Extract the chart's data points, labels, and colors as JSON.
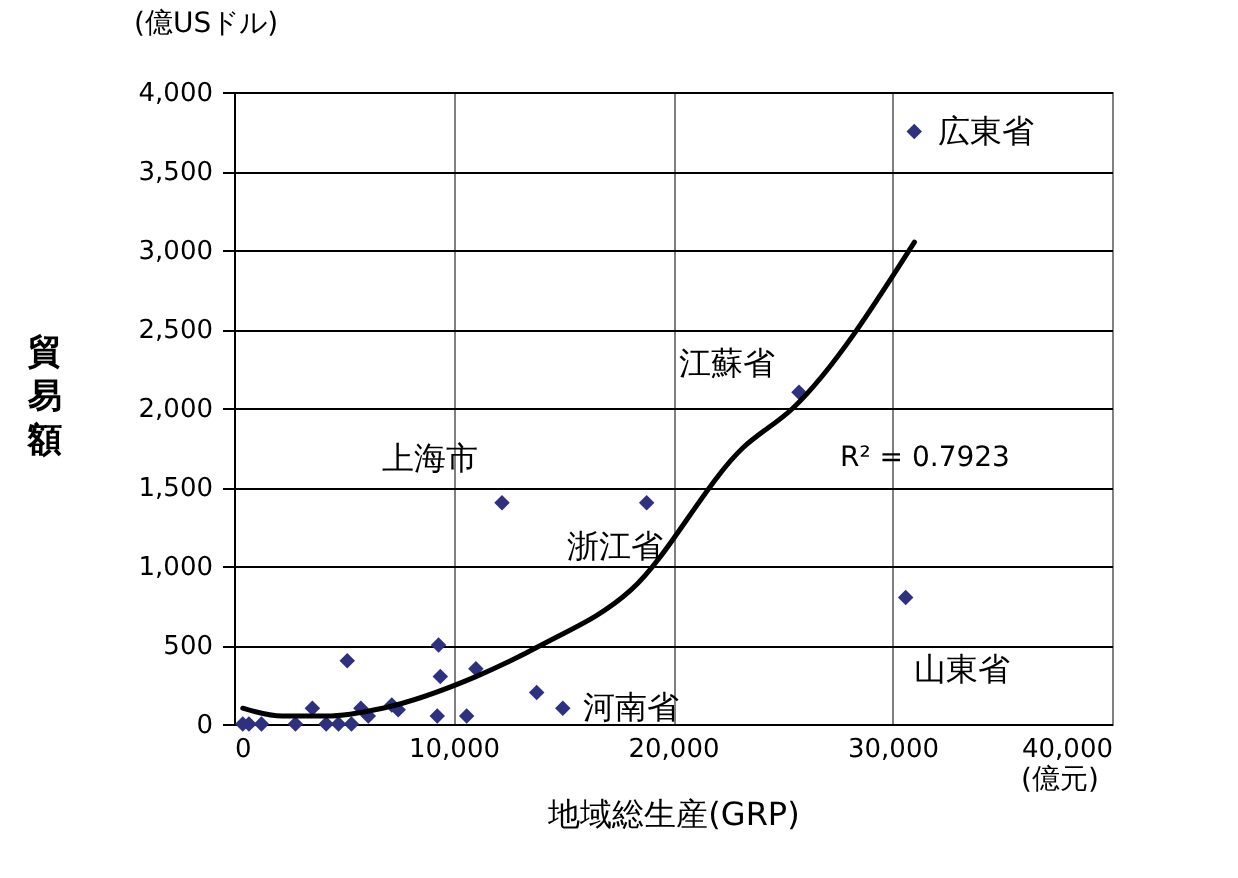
{
  "chart_data": {
    "type": "scatter",
    "ylabel": "貿易額",
    "xlabel": "地域総生産(GRP)",
    "xlim": [
      0,
      40000
    ],
    "ylim": [
      0,
      4000
    ],
    "xticks": [
      {
        "value": 0,
        "label": "0"
      },
      {
        "value": 10000,
        "label": "10,000"
      },
      {
        "value": 20000,
        "label": "20,000"
      },
      {
        "value": 30000,
        "label": "30,000"
      },
      {
        "value": 40000,
        "label": "40,000"
      }
    ],
    "yticks": [
      {
        "value": 0,
        "label": "0"
      },
      {
        "value": 500,
        "label": "500"
      },
      {
        "value": 1000,
        "label": "1,000"
      },
      {
        "value": 1500,
        "label": "1,500"
      },
      {
        "value": 2000,
        "label": "2,000"
      },
      {
        "value": 2500,
        "label": "2,500"
      },
      {
        "value": 3000,
        "label": "3,000"
      },
      {
        "value": 3500,
        "label": "3,500"
      },
      {
        "value": 4000,
        "label": "4,000"
      }
    ],
    "grid": true,
    "marker": "diamond",
    "series": [
      {
        "color": "#2e3080",
        "x": [
          400,
          680,
          1250,
          2800,
          3570,
          4200,
          5160,
          4760,
          5350,
          5780,
          6120,
          7190,
          7480,
          9320,
          9400,
          9260,
          11020,
          10600,
          13790,
          14980,
          12210,
          18800,
          30990,
          25740,
          30600
        ],
        "values": [
          0,
          0,
          0,
          0,
          100,
          0,
          400,
          0,
          0,
          100,
          50,
          120,
          90,
          500,
          300,
          50,
          350,
          50,
          200,
          100,
          1400,
          1400,
          3750,
          2100,
          800
        ]
      },
      {
        "type": "line",
        "marker": "none",
        "color": "#000000",
        "x": [
          400,
          2200,
          4200,
          6770,
          11020,
          14000,
          18100,
          23200,
          25470,
          31000
        ],
        "values": [
          100,
          50,
          50,
          100,
          300,
          500,
          850,
          1750,
          2000,
          3050
        ]
      }
    ],
    "annotations": [
      {
        "text": "広東省",
        "x": 30990,
        "y": 3750
      },
      {
        "text": "江蘇省",
        "x": 25740,
        "y": 2100
      },
      {
        "text": "上海市",
        "x": 12210,
        "y": 1400
      },
      {
        "text": "浙江省",
        "x": 18800,
        "y": 1400
      },
      {
        "text": "山東省",
        "x": 30600,
        "y": 800
      },
      {
        "text": "河南省",
        "x": 14980,
        "y": 100
      },
      "R² = 0.7923",
      "(億USドル)",
      "(億元)"
    ]
  }
}
